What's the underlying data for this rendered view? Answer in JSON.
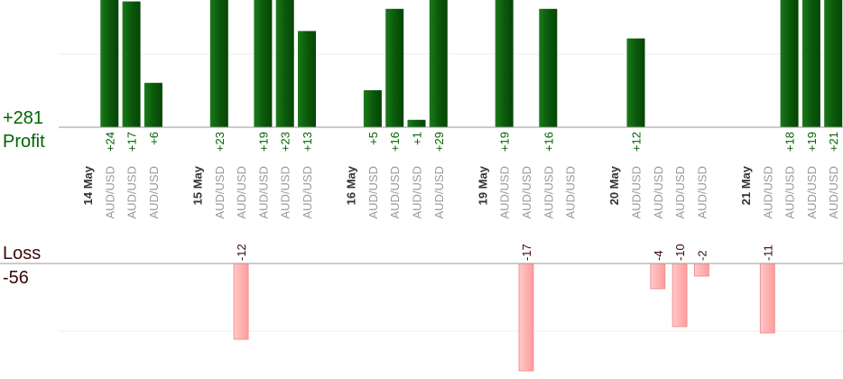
{
  "profit_label": "Profit",
  "profit_total": {
    "value": 281,
    "label": "+281"
  },
  "loss_label": "Loss",
  "loss_total": -56,
  "columns": [
    {
      "date": "14 May"
    },
    {
      "pair": "AUD/USD",
      "value": 24,
      "value_label": "+24"
    },
    {
      "pair": "AUD/USD",
      "value": 17,
      "value_label": "+17"
    },
    {
      "pair": "AUD/USD",
      "value": 6,
      "value_label": "+6"
    },
    {
      "date": "15 May"
    },
    {
      "pair": "AUD/USD",
      "value": 23,
      "value_label": "+23"
    },
    {
      "pair": "AUD/USD",
      "value": -12
    },
    {
      "pair": "AUD/USD",
      "value": 19,
      "value_label": "+19"
    },
    {
      "pair": "AUD/USD",
      "value": 23,
      "value_label": "+23"
    },
    {
      "pair": "AUD/USD",
      "value": 13,
      "value_label": "+13"
    },
    {
      "date": "16 May"
    },
    {
      "pair": "AUD/USD",
      "value": 5,
      "value_label": "+5"
    },
    {
      "pair": "AUD/USD",
      "value": 16,
      "value_label": "+16"
    },
    {
      "pair": "AUD/USD",
      "value": 1,
      "value_label": "+1"
    },
    {
      "pair": "AUD/USD",
      "value": 29,
      "value_label": "+29"
    },
    {
      "date": "19 May"
    },
    {
      "pair": "AUD/USD",
      "value": 19,
      "value_label": "+19"
    },
    {
      "pair": "AUD/USD",
      "value": -17
    },
    {
      "pair": "AUD/USD",
      "value": 16,
      "value_label": "+16"
    },
    {
      "pair": "AUD/USD",
      "value": null
    },
    {
      "date": "20 May"
    },
    {
      "pair": "AUD/USD",
      "value": 12,
      "value_label": "+12"
    },
    {
      "pair": "AUD/USD",
      "value": -4
    },
    {
      "pair": "AUD/USD",
      "value": -10
    },
    {
      "pair": "AUD/USD",
      "value": -2
    },
    {
      "date": "21 May"
    },
    {
      "pair": "AUD/USD",
      "value": -11
    },
    {
      "pair": "AUD/USD",
      "value": 18,
      "value_label": "+18"
    },
    {
      "pair": "AUD/USD",
      "value": 19,
      "value_label": "+19"
    },
    {
      "pair": "AUD/USD",
      "value": 21,
      "value_label": "+21"
    }
  ]
}
